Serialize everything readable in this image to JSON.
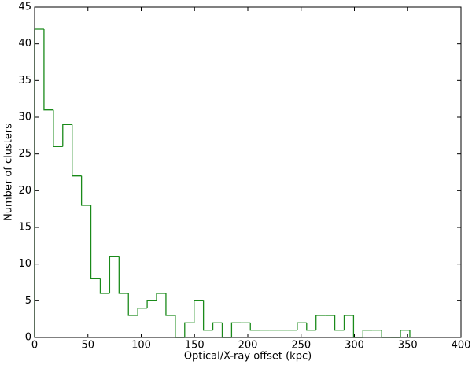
{
  "chart_data": {
    "type": "step-histogram",
    "x_label": "Optical/X-ray offset (kpc)",
    "y_label": "Number of clusters",
    "color": "#1a8a1a",
    "bins": [
      0,
      8.8,
      17.6,
      26.4,
      35.2,
      44,
      52.8,
      61.6,
      70.4,
      79.2,
      88,
      96.8,
      105.6,
      114.4,
      123.2,
      132,
      140.8,
      149.6,
      158.4,
      167.2,
      176,
      184.8,
      193.6,
      202.4,
      211.2,
      220,
      228.8,
      237.6,
      246.4,
      255.2,
      264,
      272.8,
      281.6,
      290.4,
      299.2,
      308,
      316.8,
      325.6,
      334.4,
      343.2,
      352
    ],
    "values": [
      42,
      31,
      26,
      29,
      22,
      18,
      8,
      6,
      11,
      6,
      3,
      4,
      5,
      6,
      3,
      0,
      2,
      5,
      1,
      2,
      0,
      2,
      2,
      1,
      1,
      1,
      1,
      1,
      2,
      1,
      3,
      3,
      1,
      3,
      0,
      1,
      1,
      0,
      0,
      1
    ],
    "xlim": [
      0,
      400
    ],
    "xticks": [
      0,
      50,
      100,
      150,
      200,
      250,
      300,
      350,
      400
    ],
    "ylim": [
      0,
      45
    ],
    "yticks": [
      0,
      5,
      10,
      15,
      20,
      25,
      30,
      35,
      40,
      45
    ]
  }
}
